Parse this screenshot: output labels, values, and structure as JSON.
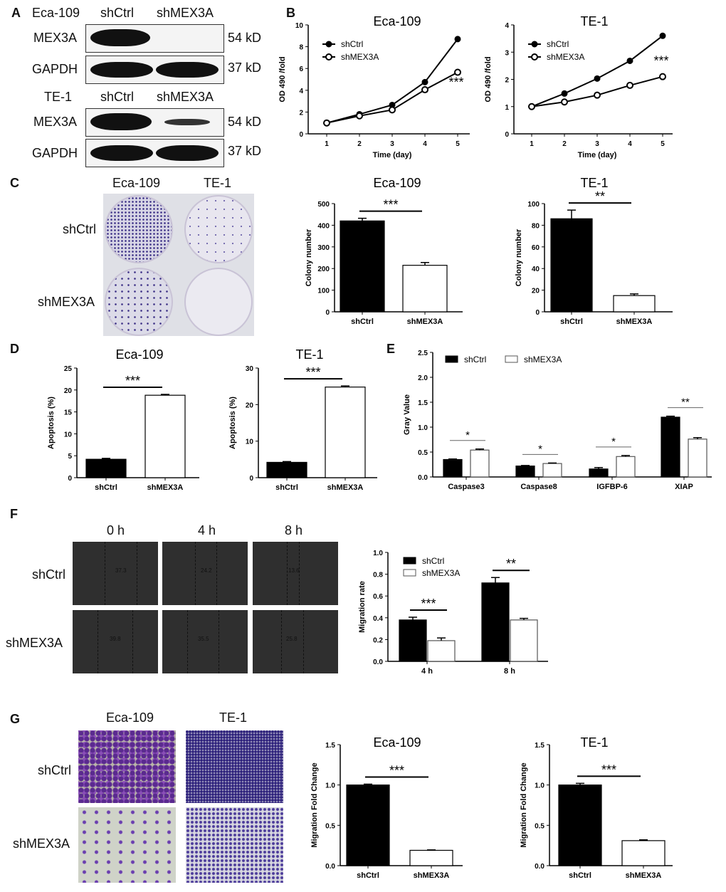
{
  "panels": {
    "A": "A",
    "B": "B",
    "C": "C",
    "D": "D",
    "E": "E",
    "F": "F",
    "G": "G"
  },
  "blots": {
    "eca_header": {
      "cell": "Eca-109",
      "lane1": "shCtrl",
      "lane2": "shMEX3A"
    },
    "te_header": {
      "cell": "TE-1",
      "lane1": "shCtrl",
      "lane2": "shMEX3A"
    },
    "rows": [
      {
        "protein": "MEX3A",
        "size": "54 kD"
      },
      {
        "protein": "GAPDH",
        "size": "37 kD"
      },
      {
        "protein": "MEX3A",
        "size": "54 kD"
      },
      {
        "protein": "GAPDH",
        "size": "37 kD"
      }
    ]
  },
  "colony_images": {
    "col1": "Eca-109",
    "col2": "TE-1",
    "row1": "shCtrl",
    "row2": "shMEX3A"
  },
  "wound_images": {
    "cols": [
      "0 h",
      "4 h",
      "8 h"
    ],
    "rows": [
      "shCtrl",
      "shMEX3A"
    ],
    "widths": [
      [
        "37.3",
        "24.2",
        "13.6"
      ],
      [
        "39.8",
        "35.5",
        "25.8"
      ]
    ]
  },
  "transwell_images": {
    "col1": "Eca-109",
    "col2": "TE-1",
    "row1": "shCtrl",
    "row2": "shMEX3A"
  },
  "colors": {
    "shCtrl": "#000000",
    "shMEX3A": "#ffffff"
  },
  "chart_data": [
    {
      "type": "line",
      "panel": "B",
      "title": "Eca-109",
      "xlabel": "Time (day)",
      "ylabel": "OD 490 /fold",
      "x": [
        1,
        2,
        3,
        4,
        5
      ],
      "ylim": [
        0,
        10
      ],
      "yticks": [
        0,
        2,
        4,
        6,
        8,
        10
      ],
      "series": [
        {
          "name": "shCtrl",
          "values": [
            1,
            1.8,
            2.65,
            4.75,
            8.7
          ],
          "marker": "filled"
        },
        {
          "name": "shMEX3A",
          "values": [
            1,
            1.65,
            2.2,
            4.05,
            5.65
          ],
          "marker": "open"
        }
      ],
      "significance": "***",
      "legend": "top-left"
    },
    {
      "type": "line",
      "panel": "B",
      "title": "TE-1",
      "xlabel": "Time (day)",
      "ylabel": "OD 490 /fold",
      "x": [
        1,
        2,
        3,
        4,
        5
      ],
      "ylim": [
        0,
        4
      ],
      "yticks": [
        0,
        1,
        2,
        3,
        4
      ],
      "series": [
        {
          "name": "shCtrl",
          "values": [
            1,
            1.48,
            2.03,
            2.68,
            3.6
          ],
          "marker": "filled"
        },
        {
          "name": "shMEX3A",
          "values": [
            1,
            1.17,
            1.42,
            1.78,
            2.1
          ],
          "marker": "open"
        }
      ],
      "significance": "***",
      "legend": "top-left"
    },
    {
      "type": "bar",
      "panel": "C",
      "title": "Eca-109",
      "ylabel": "Colony number",
      "categories": [
        "shCtrl",
        "shMEX3A"
      ],
      "values": [
        420,
        215
      ],
      "errors": [
        12,
        13
      ],
      "ylim": [
        0,
        500
      ],
      "yticks": [
        0,
        100,
        200,
        300,
        400,
        500
      ],
      "significance": "***"
    },
    {
      "type": "bar",
      "panel": "C",
      "title": "TE-1",
      "ylabel": "Colony number",
      "categories": [
        "shCtrl",
        "shMEX3A"
      ],
      "values": [
        86,
        15
      ],
      "errors": [
        8,
        1.5
      ],
      "ylim": [
        0,
        100
      ],
      "yticks": [
        0,
        20,
        40,
        60,
        80,
        100
      ],
      "significance": "**"
    },
    {
      "type": "bar",
      "panel": "D",
      "title": "Eca-109",
      "ylabel": "Apoptosis (%)",
      "categories": [
        "shCtrl",
        "shMEX3A"
      ],
      "values": [
        4.2,
        18.8
      ],
      "errors": [
        0.2,
        0.2
      ],
      "ylim": [
        0,
        25
      ],
      "yticks": [
        0,
        5,
        10,
        15,
        20,
        25
      ],
      "significance": "***"
    },
    {
      "type": "bar",
      "panel": "D",
      "title": "TE-1",
      "ylabel": "Apoptosis (%)",
      "categories": [
        "shCtrl",
        "shMEX3A"
      ],
      "values": [
        4.2,
        24.8
      ],
      "errors": [
        0.2,
        0.3
      ],
      "ylim": [
        0,
        30
      ],
      "yticks": [
        0,
        10,
        20,
        30
      ],
      "significance": "***"
    },
    {
      "type": "bar",
      "panel": "E",
      "title": "",
      "ylabel": "Gray Value",
      "categories": [
        "Caspase3",
        "Caspase8",
        "IGFBP-6",
        "XIAP"
      ],
      "ylim": [
        0,
        2.5
      ],
      "yticks": [
        "0.0",
        "0.5",
        "1.0",
        "1.5",
        "2.0",
        "2.5"
      ],
      "series": [
        {
          "name": "shCtrl",
          "values": [
            0.35,
            0.22,
            0.16,
            1.2
          ],
          "errors": [
            0.01,
            0.01,
            0.03,
            0.02
          ]
        },
        {
          "name": "shMEX3A",
          "values": [
            0.54,
            0.27,
            0.41,
            0.76
          ],
          "errors": [
            0.02,
            0.01,
            0.02,
            0.03
          ]
        }
      ],
      "significance": [
        "*",
        "*",
        "*",
        "**"
      ],
      "legend": "top"
    },
    {
      "type": "bar",
      "panel": "F",
      "title": "",
      "ylabel": "Migration rate",
      "categories": [
        "4 h",
        "8 h"
      ],
      "ylim": [
        0,
        1.0
      ],
      "yticks": [
        "0.0",
        "0.2",
        "0.4",
        "0.6",
        "0.8",
        "1.0"
      ],
      "series": [
        {
          "name": "shCtrl",
          "values": [
            0.38,
            0.72
          ],
          "errors": [
            0.025,
            0.05
          ]
        },
        {
          "name": "shMEX3A",
          "values": [
            0.19,
            0.38
          ],
          "errors": [
            0.025,
            0.015
          ]
        }
      ],
      "significance": [
        "***",
        "**"
      ],
      "legend": "top-left"
    },
    {
      "type": "bar",
      "panel": "G",
      "title": "Eca-109",
      "ylabel": "Migration Fold Change",
      "categories": [
        "shCtrl",
        "shMEX3A"
      ],
      "values": [
        1.0,
        0.19
      ],
      "errors": [
        0.01,
        0.005
      ],
      "ylim": [
        0,
        1.5
      ],
      "yticks": [
        "0.0",
        "0.5",
        "1.0",
        "1.5"
      ],
      "significance": "***"
    },
    {
      "type": "bar",
      "panel": "G",
      "title": "TE-1",
      "ylabel": "Migration Fold Change",
      "categories": [
        "shCtrl",
        "shMEX3A"
      ],
      "values": [
        1.0,
        0.31
      ],
      "errors": [
        0.02,
        0.01
      ],
      "ylim": [
        0,
        1.5
      ],
      "yticks": [
        "0.0",
        "0.5",
        "1.0",
        "1.5"
      ],
      "significance": "***"
    }
  ]
}
